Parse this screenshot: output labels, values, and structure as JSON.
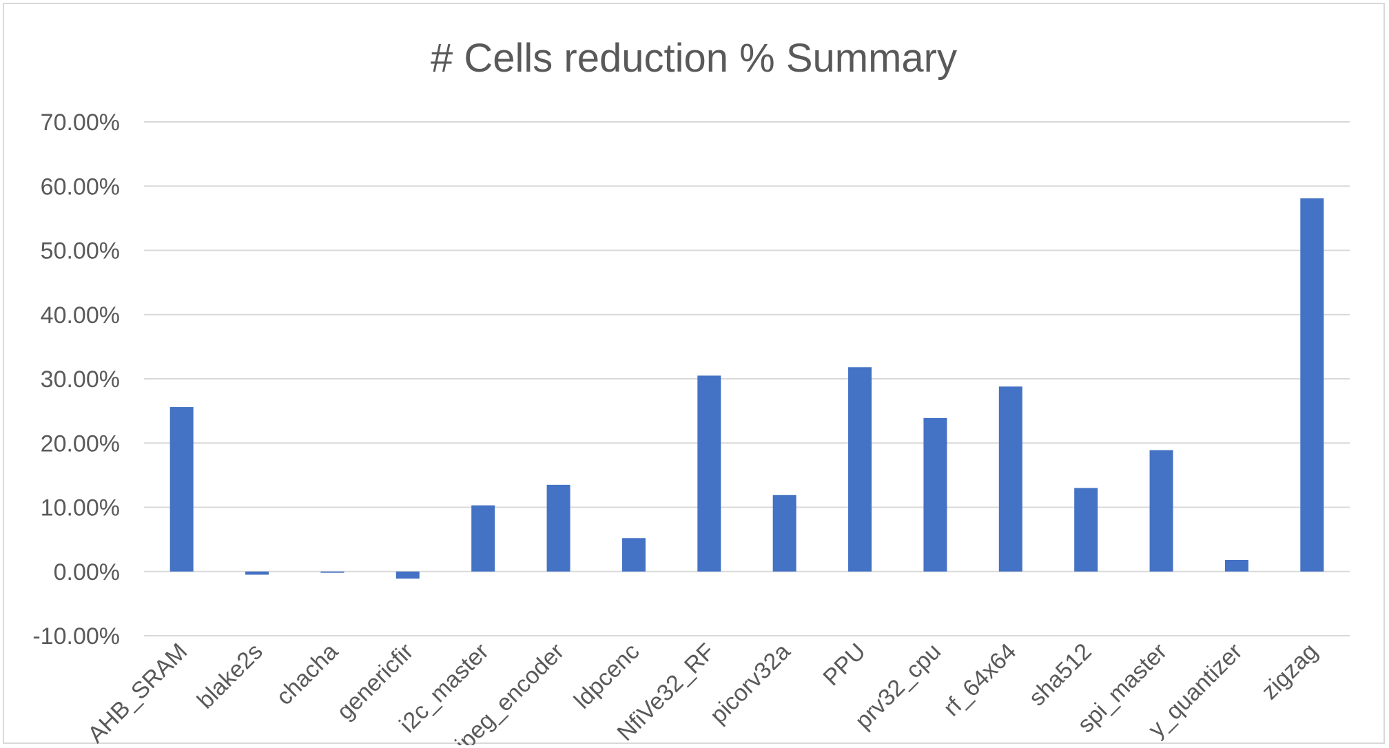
{
  "chart_data": {
    "type": "bar",
    "title": "# Cells reduction % Summary",
    "xlabel": "",
    "ylabel": "",
    "categories": [
      "AHB_SRAM",
      "blake2s",
      "chacha",
      "genericfir",
      "i2c_master",
      "jpeg_encoder",
      "ldpcenc",
      "NfiVe32_RF",
      "picorv32a",
      "PPU",
      "prv32_cpu",
      "rf_64x64",
      "sha512",
      "spi_master",
      "y_quantizer",
      "zigzag"
    ],
    "values": [
      0.256,
      -0.005,
      -0.002,
      -0.011,
      0.103,
      0.135,
      0.052,
      0.305,
      0.119,
      0.318,
      0.239,
      0.288,
      0.13,
      0.189,
      0.018,
      0.581
    ],
    "ylim": [
      -0.1,
      0.7
    ],
    "yticks": [
      -0.1,
      0.0,
      0.1,
      0.2,
      0.3,
      0.4,
      0.5,
      0.6,
      0.7
    ],
    "ytick_labels": [
      "-10.00%",
      "0.00%",
      "10.00%",
      "20.00%",
      "30.00%",
      "40.00%",
      "50.00%",
      "60.00%",
      "70.00%"
    ],
    "grid": true,
    "legend": "none",
    "bar_color": "#4472c4",
    "grid_color": "#d9d9d9",
    "text_color": "#595959"
  }
}
